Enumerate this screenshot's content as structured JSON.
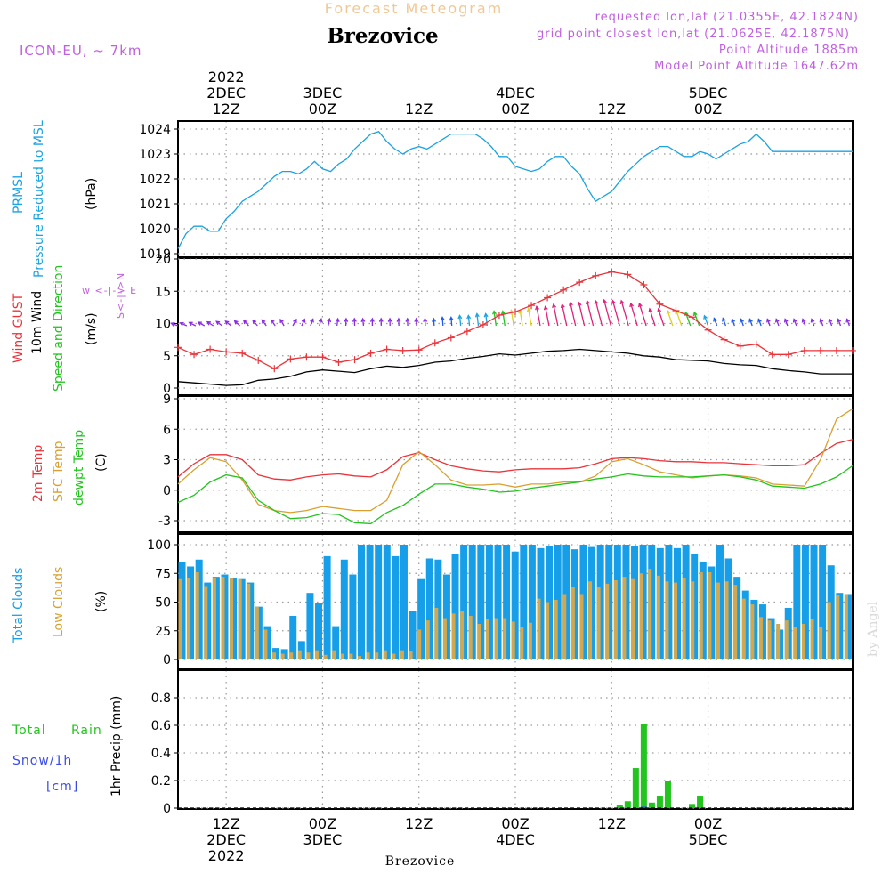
{
  "header": {
    "product": "Forecast Meteogram",
    "location": "Brezovice",
    "model": "ICON-EU, ~ 7km",
    "requested": "requested lon,lat (21.0355E, 42.1824N)",
    "grid": "grid point closest lon,lat (21.0625E, 42.1875N)",
    "altitude": "Point Altitude 1885m",
    "model_altitude": "Model Point Altitude 1647.62m",
    "footer_location": "Brezovice",
    "watermark": "by Angel"
  },
  "time_axis": {
    "top_labels": [
      {
        "line1": "2022",
        "line2": "2DEC",
        "line3": "12Z"
      },
      {
        "line1": "",
        "line2": "3DEC",
        "line3": "00Z"
      },
      {
        "line1": "",
        "line2": "",
        "line3": "12Z"
      },
      {
        "line1": "",
        "line2": "4DEC",
        "line3": "00Z"
      },
      {
        "line1": "",
        "line2": "",
        "line3": "12Z"
      },
      {
        "line1": "",
        "line2": "5DEC",
        "line3": "00Z"
      }
    ],
    "bottom_labels": [
      {
        "line1": "12Z",
        "line2": "2DEC",
        "line3": "2022"
      },
      {
        "line1": "00Z",
        "line2": "3DEC",
        "line3": ""
      },
      {
        "line1": "12Z",
        "line2": "",
        "line3": ""
      },
      {
        "line1": "00Z",
        "line2": "4DEC",
        "line3": ""
      },
      {
        "line1": "12Z",
        "line2": "",
        "line3": ""
      },
      {
        "line1": "00Z",
        "line2": "5DEC",
        "line3": ""
      }
    ]
  },
  "panels": {
    "pressure": {
      "label1": "PRMSL",
      "label2": "Pressure Reduced to MSL",
      "unit": "(hPa)",
      "ticks": [
        "1019",
        "1020",
        "1021",
        "1022",
        "1023",
        "1024"
      ]
    },
    "wind": {
      "label1": "Wind GUST",
      "label2": "10m Wind",
      "label3": "Speed and Direction",
      "unit": "(m/s)",
      "compass": "w <-|-> E",
      "compass_v": "S<-|->N",
      "ticks": [
        "0",
        "5",
        "10",
        "15",
        "20"
      ]
    },
    "temp": {
      "label1": "2m Temp",
      "label2": "SFC Temp",
      "label3": "dewpt Temp",
      "unit": "(C)",
      "ticks": [
        "-3",
        "0",
        "3",
        "6",
        "9"
      ]
    },
    "clouds": {
      "label1": "Total Clouds",
      "label2": "Low Clouds",
      "unit": "(%)",
      "ticks": [
        "0",
        "25",
        "50",
        "75",
        "100"
      ]
    },
    "precip": {
      "label1": "Total",
      "label1b": "Rain",
      "label2": "Snow/1h",
      "label3": "[cm]",
      "unit": "1hr Precip (mm)",
      "ticks": [
        "0",
        "0.2",
        "0.4",
        "0.6",
        "0.8"
      ]
    }
  },
  "colors": {
    "pressure": "#1aa3e0",
    "gust": "#e8343a",
    "wind": "#000000",
    "t2m": "#e8343a",
    "sfc": "#d9a030",
    "dewpt": "#22c41e",
    "total_cloud": "#169ee8",
    "low_cloud": "#d1a850",
    "rain": "#22c41e",
    "snow": "#3b4be6",
    "label_purple": "#c060e0"
  },
  "chart_data": {
    "type": "line",
    "time_unit": "hours since 2022-12-02 06Z",
    "time_start": "2022-12-02 06Z",
    "time_end": "2022-12-05 18Z",
    "series": [
      {
        "name": "PRMSL",
        "unit": "hPa",
        "ylim": [
          1019,
          1024.2
        ],
        "x": [
          0,
          1,
          2,
          3,
          4,
          5,
          6,
          7,
          8,
          9,
          10,
          11,
          12,
          13,
          14,
          15,
          16,
          17,
          18,
          19,
          20,
          21,
          22,
          23,
          24,
          25,
          26,
          27,
          28,
          29,
          30,
          31,
          32,
          33,
          34,
          35,
          36,
          37,
          38,
          39,
          40,
          41,
          42,
          43,
          44,
          45,
          46,
          47,
          48,
          49,
          50,
          51,
          52,
          53,
          54,
          55,
          56,
          57,
          58,
          59,
          60,
          61,
          62,
          63,
          64,
          65,
          66,
          67,
          68,
          69,
          70,
          71,
          72,
          73,
          74,
          75,
          76,
          77,
          78,
          79,
          80,
          81,
          82,
          83,
          84
        ],
        "values": [
          1019.2,
          1019.8,
          1020.1,
          1020.1,
          1019.9,
          1019.9,
          1020.4,
          1020.7,
          1021.1,
          1021.3,
          1021.5,
          1021.8,
          1022.1,
          1022.3,
          1022.3,
          1022.2,
          1022.4,
          1022.7,
          1022.4,
          1022.3,
          1022.6,
          1022.8,
          1023.2,
          1023.5,
          1023.8,
          1023.9,
          1023.5,
          1023.2,
          1023.0,
          1023.2,
          1023.3,
          1023.2,
          1023.4,
          1023.6,
          1023.8,
          1023.8,
          1023.8,
          1023.8,
          1023.6,
          1023.3,
          1022.9,
          1022.9,
          1022.5,
          1022.4,
          1022.3,
          1022.4,
          1022.7,
          1022.9,
          1022.9,
          1022.5,
          1022.2,
          1021.6,
          1021.1,
          1021.3,
          1021.5,
          1021.9,
          1022.3,
          1022.6,
          1022.9,
          1023.1,
          1023.3,
          1023.3,
          1023.1,
          1022.9,
          1022.9,
          1023.1,
          1023.0,
          1022.8,
          1023.0,
          1023.2,
          1023.4,
          1023.5,
          1023.8,
          1023.5,
          1023.1,
          1023.1,
          1023.1,
          1023.1,
          1023.1,
          1023.1,
          1023.1,
          1023.1,
          1023.1,
          1023.1,
          1023.1
        ]
      },
      {
        "name": "Wind GUST",
        "unit": "m/s",
        "x": [
          0,
          2,
          4,
          6,
          8,
          10,
          12,
          14,
          16,
          18,
          20,
          22,
          24,
          26,
          28,
          30,
          32,
          34,
          36,
          38,
          40,
          42,
          44,
          46,
          48,
          50,
          52,
          54,
          56,
          58,
          60,
          62,
          64,
          66,
          68,
          70,
          72,
          74,
          76,
          78,
          80,
          82,
          84
        ],
        "values": [
          6.3,
          5.2,
          6.0,
          5.6,
          5.4,
          4.3,
          3.0,
          4.5,
          4.8,
          4.8,
          4.0,
          4.4,
          5.4,
          6.0,
          5.8,
          5.9,
          7.0,
          7.8,
          8.8,
          9.8,
          11.3,
          11.8,
          12.8,
          14.0,
          15.2,
          16.4,
          17.4,
          18.0,
          17.6,
          16.0,
          13.0,
          12.0,
          11.0,
          9.0,
          7.5,
          6.5,
          6.8,
          5.2,
          5.2,
          5.8,
          5.8,
          5.8,
          5.8
        ]
      },
      {
        "name": "10m Wind",
        "unit": "m/s",
        "x": [
          0,
          2,
          4,
          6,
          8,
          10,
          12,
          14,
          16,
          18,
          20,
          22,
          24,
          26,
          28,
          30,
          32,
          34,
          36,
          38,
          40,
          42,
          44,
          46,
          48,
          50,
          52,
          54,
          56,
          58,
          60,
          62,
          64,
          66,
          68,
          70,
          72,
          74,
          76,
          78,
          80,
          82,
          84
        ],
        "values": [
          1.0,
          0.8,
          0.6,
          0.4,
          0.5,
          1.2,
          1.4,
          1.8,
          2.5,
          2.8,
          2.6,
          2.4,
          3.0,
          3.4,
          3.2,
          3.5,
          4.0,
          4.2,
          4.6,
          4.9,
          5.3,
          5.1,
          5.4,
          5.7,
          5.8,
          6.0,
          5.8,
          5.6,
          5.4,
          5.0,
          4.8,
          4.4,
          4.3,
          4.2,
          3.8,
          3.6,
          3.5,
          3.0,
          2.7,
          2.5,
          2.2,
          2.2,
          2.2
        ]
      },
      {
        "name": "2m Temp",
        "unit": "C",
        "x": [
          0,
          2,
          4,
          6,
          8,
          10,
          12,
          14,
          16,
          18,
          20,
          22,
          24,
          26,
          28,
          30,
          32,
          34,
          36,
          38,
          40,
          42,
          44,
          46,
          48,
          50,
          52,
          54,
          56,
          58,
          60,
          62,
          64,
          66,
          68,
          70,
          72,
          74,
          76,
          78,
          80,
          82,
          84
        ],
        "values": [
          1.3,
          2.6,
          3.5,
          3.5,
          3.0,
          1.5,
          1.1,
          1.0,
          1.3,
          1.5,
          1.6,
          1.4,
          1.3,
          2.0,
          3.3,
          3.7,
          3.0,
          2.4,
          2.1,
          1.9,
          1.8,
          2.0,
          2.1,
          2.1,
          2.1,
          2.2,
          2.6,
          3.1,
          3.2,
          3.1,
          2.9,
          2.8,
          2.8,
          2.7,
          2.7,
          2.6,
          2.5,
          2.4,
          2.4,
          2.5,
          3.6,
          4.6,
          5.0
        ]
      },
      {
        "name": "SFC Temp",
        "unit": "C",
        "x": [
          0,
          2,
          4,
          6,
          8,
          10,
          12,
          14,
          16,
          18,
          20,
          22,
          24,
          26,
          28,
          30,
          32,
          34,
          36,
          38,
          40,
          42,
          44,
          46,
          48,
          50,
          52,
          54,
          56,
          58,
          60,
          62,
          64,
          66,
          68,
          70,
          72,
          74,
          76,
          78,
          80,
          82,
          84
        ],
        "values": [
          0.6,
          2.0,
          3.2,
          2.8,
          1.0,
          -1.4,
          -2.0,
          -2.2,
          -2.0,
          -1.6,
          -1.8,
          -2.0,
          -2.0,
          -1.0,
          2.5,
          3.8,
          2.5,
          1.0,
          0.5,
          0.5,
          0.6,
          0.3,
          0.6,
          0.6,
          0.8,
          0.8,
          1.4,
          2.8,
          3.1,
          2.5,
          1.8,
          1.5,
          1.2,
          1.4,
          1.5,
          1.4,
          1.2,
          0.6,
          0.5,
          0.4,
          3.0,
          7.0,
          8.0
        ]
      },
      {
        "name": "dewpt Temp",
        "unit": "C",
        "x": [
          0,
          2,
          4,
          6,
          8,
          10,
          12,
          14,
          16,
          18,
          20,
          22,
          24,
          26,
          28,
          30,
          32,
          34,
          36,
          38,
          40,
          42,
          44,
          46,
          48,
          50,
          52,
          54,
          56,
          58,
          60,
          62,
          64,
          66,
          68,
          70,
          72,
          74,
          76,
          78,
          80,
          82,
          84
        ],
        "values": [
          -1.2,
          -0.5,
          0.8,
          1.5,
          1.2,
          -1.0,
          -2.0,
          -2.8,
          -2.7,
          -2.3,
          -2.4,
          -3.2,
          -3.3,
          -2.2,
          -1.5,
          -0.4,
          0.6,
          0.6,
          0.3,
          0.1,
          -0.2,
          -0.1,
          0.2,
          0.4,
          0.6,
          0.8,
          1.1,
          1.3,
          1.6,
          1.4,
          1.3,
          1.3,
          1.3,
          1.4,
          1.5,
          1.3,
          1.0,
          0.4,
          0.3,
          0.2,
          0.6,
          1.3,
          2.4
        ]
      },
      {
        "name": "Total Clouds",
        "unit": "%",
        "values": [
          85,
          81,
          87,
          67,
          72,
          74,
          71,
          70,
          67,
          46,
          29,
          10,
          9,
          38,
          16,
          58,
          49,
          90,
          29,
          87,
          74,
          100,
          100,
          100,
          100,
          90,
          100,
          42,
          70,
          88,
          87,
          74,
          92,
          100,
          100,
          100,
          100,
          100,
          100,
          94,
          100,
          100,
          97,
          99,
          100,
          100,
          96,
          100,
          98,
          100,
          100,
          100,
          100,
          99,
          100,
          100,
          97,
          100,
          97,
          100,
          92,
          85,
          81,
          100,
          88,
          72,
          60,
          52,
          48,
          36,
          26,
          45,
          100,
          100,
          100,
          100,
          82,
          58,
          57
        ]
      },
      {
        "name": "Low Clouds",
        "unit": "%",
        "values": [
          70,
          71,
          76,
          64,
          71,
          72,
          71,
          70,
          66,
          46,
          26,
          6,
          5,
          6,
          8,
          6,
          8,
          4,
          8,
          5,
          5,
          3,
          6,
          6,
          8,
          5,
          8,
          7,
          26,
          34,
          45,
          36,
          40,
          42,
          38,
          31,
          35,
          36,
          36,
          33,
          28,
          32,
          53,
          50,
          52,
          57,
          63,
          57,
          68,
          63,
          66,
          69,
          72,
          70,
          75,
          79,
          73,
          68,
          67,
          71,
          68,
          76,
          76,
          67,
          68,
          65,
          53,
          48,
          37,
          34,
          31,
          34,
          28,
          31,
          35,
          28,
          50,
          56,
          57
        ]
      },
      {
        "name": "Rain",
        "unit": "mm",
        "x": [
          54,
          55,
          56,
          57,
          58,
          59,
          60,
          61,
          62,
          63,
          64,
          65,
          66,
          67,
          68
        ],
        "values": [
          0,
          0.02,
          0.05,
          0.29,
          0.61,
          0.04,
          0.09,
          0.2,
          0,
          0,
          0.03,
          0.09,
          0,
          0,
          0
        ]
      },
      {
        "name": "Snow/1h",
        "unit": "cm",
        "x": [
          56,
          57,
          58
        ],
        "values": [
          0,
          0,
          0.01
        ]
      }
    ]
  }
}
